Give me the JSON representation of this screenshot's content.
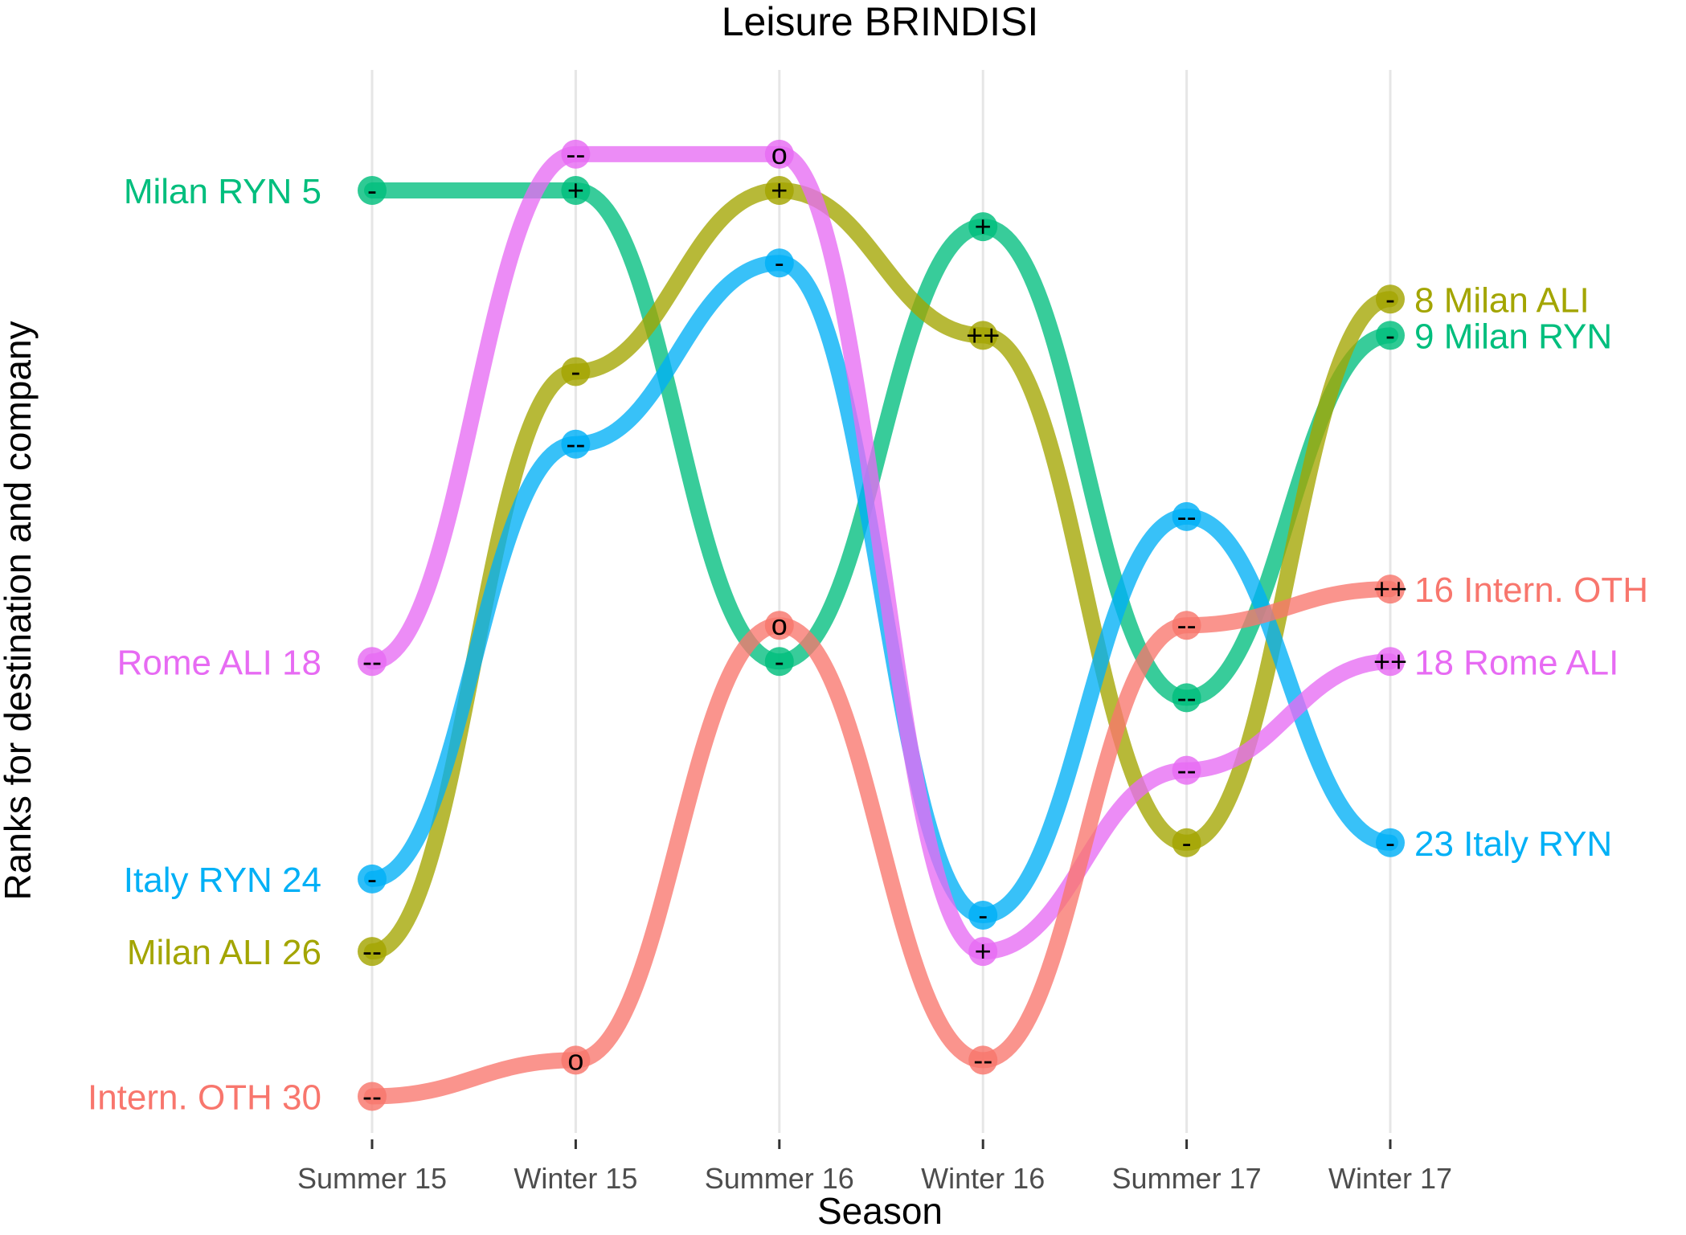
{
  "chart_data": {
    "type": "line",
    "title": "Leisure BRINDISI",
    "xlabel": "Season",
    "ylabel": "Ranks for destination and company",
    "categories": [
      "Summer 15",
      "Winter 15",
      "Summer 16",
      "Winter 16",
      "Summer 17",
      "Winter 17"
    ],
    "ylim": [
      3,
      31
    ],
    "y_reversed": true,
    "grid": "vertical",
    "legend": "none",
    "series": [
      {
        "name": "Milan RYN",
        "color": "#00BE7D",
        "ranks": [
          5,
          5,
          18,
          6,
          19,
          9
        ],
        "marks": [
          "-",
          "+",
          "-",
          "+",
          "--",
          "-"
        ],
        "start_label": "Milan RYN  5",
        "end_label": "9  Milan RYN"
      },
      {
        "name": "Milan ALI",
        "color": "#A3A500",
        "ranks": [
          26,
          10,
          5,
          9,
          23,
          8
        ],
        "marks": [
          "--",
          "-",
          "+",
          "++",
          "-",
          "-"
        ],
        "start_label": "Milan ALI  26",
        "end_label": "8  Milan ALI"
      },
      {
        "name": "Italy RYN",
        "color": "#00B0F6",
        "ranks": [
          24,
          12,
          7,
          25,
          14,
          23
        ],
        "marks": [
          "-",
          "--",
          "-",
          "-",
          "--",
          "-"
        ],
        "start_label": "Italy RYN  24",
        "end_label": "23  Italy RYN"
      },
      {
        "name": "Rome ALI",
        "color": "#E76BF3",
        "ranks": [
          18,
          4,
          4,
          26,
          21,
          18
        ],
        "marks": [
          "--",
          "--",
          "o",
          "+",
          "--",
          "++"
        ],
        "start_label": "Rome ALI  18",
        "end_label": "18  Rome ALI"
      },
      {
        "name": "Intern. OTH",
        "color": "#F8766D",
        "ranks": [
          30,
          29,
          17,
          29,
          17,
          16
        ],
        "marks": [
          "--",
          "o",
          "o",
          "--",
          "--",
          "++"
        ],
        "start_label": "Intern. OTH  30",
        "end_label": "16  Intern. OTH"
      }
    ]
  }
}
